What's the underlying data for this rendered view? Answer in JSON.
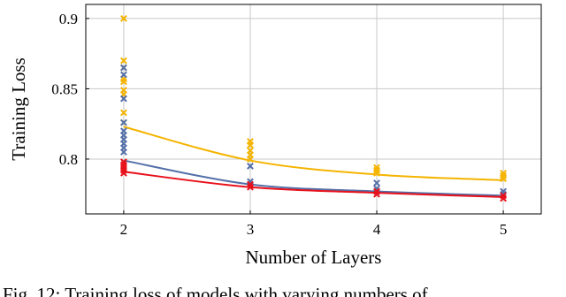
{
  "chart_data": {
    "type": "scatter",
    "xlabel": "Number of Layers",
    "ylabel": "Training Loss",
    "xlim": [
      1.7,
      5.3
    ],
    "ylim": [
      0.761,
      0.91
    ],
    "xticks": [
      2,
      3,
      4,
      5
    ],
    "yticks": [
      0.8,
      0.85,
      0.9
    ],
    "grid": true,
    "series": [
      {
        "color": "#f5b400",
        "x": [
          2,
          2,
          2,
          2,
          2,
          2,
          2,
          2,
          2,
          3,
          3,
          3,
          3,
          3,
          4,
          4,
          4,
          5,
          5,
          5
        ],
        "values": [
          0.9,
          0.87,
          0.865,
          0.857,
          0.855,
          0.849,
          0.846,
          0.833,
          0.826,
          0.8125,
          0.81,
          0.806,
          0.803,
          0.8,
          0.794,
          0.792,
          0.79,
          0.79,
          0.788,
          0.786
        ],
        "line_x": [
          2,
          3,
          4,
          5
        ],
        "line_values": [
          0.823,
          0.799,
          0.789,
          0.785
        ]
      },
      {
        "color": "#5470a8",
        "x": [
          2,
          2,
          2,
          2,
          2,
          2,
          2,
          2,
          2,
          2,
          3,
          3,
          3,
          4,
          4,
          4,
          5,
          5
        ],
        "values": [
          0.865,
          0.86,
          0.843,
          0.826,
          0.82,
          0.817,
          0.814,
          0.811,
          0.808,
          0.805,
          0.795,
          0.784,
          0.782,
          0.783,
          0.779,
          0.777,
          0.777,
          0.775
        ],
        "line_x": [
          2,
          3,
          4,
          5
        ],
        "line_values": [
          0.799,
          0.782,
          0.777,
          0.774
        ]
      },
      {
        "color": "#e8101a",
        "x": [
          2,
          2,
          2,
          2,
          2,
          3,
          3,
          4,
          4,
          5,
          5
        ],
        "values": [
          0.798,
          0.796,
          0.794,
          0.792,
          0.79,
          0.782,
          0.78,
          0.777,
          0.775,
          0.774,
          0.772
        ],
        "line_x": [
          2,
          3,
          4,
          5
        ],
        "line_values": [
          0.791,
          0.78,
          0.776,
          0.773
        ]
      }
    ]
  },
  "caption": "Fig. 12: Training loss of models with varying numbers of"
}
